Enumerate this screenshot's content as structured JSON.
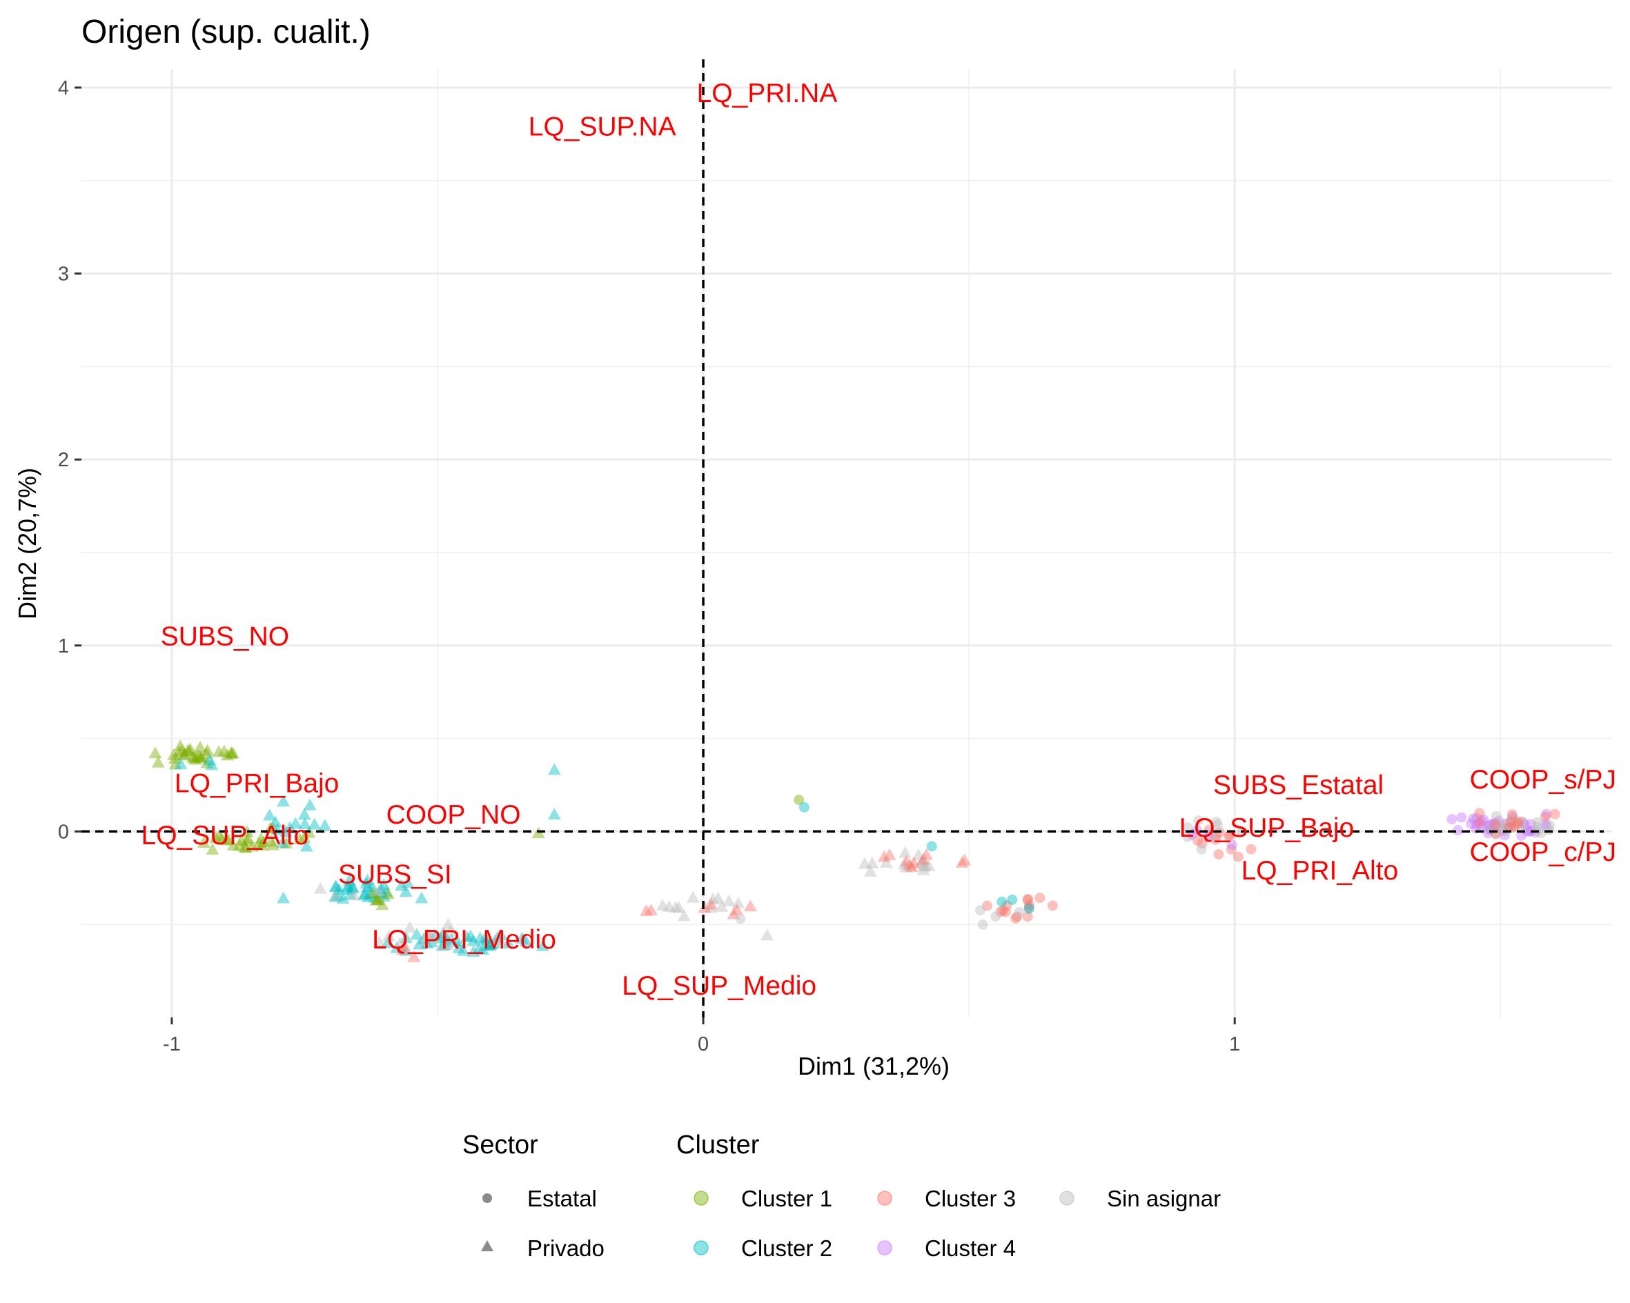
{
  "chart_data": {
    "type": "scatter",
    "title": "Origen (sup. cualit.)",
    "xlabel": "Dim1 (31,2%)",
    "ylabel": "Dim2 (20,7%)",
    "xlim": [
      -1.17,
      1.71
    ],
    "ylim": [
      -1.0,
      4.1
    ],
    "x_ticks": [
      {
        "value": -1,
        "label": "-1"
      },
      {
        "value": 0,
        "label": "0"
      },
      {
        "value": 1,
        "label": "1"
      }
    ],
    "y_ticks": [
      {
        "value": 0,
        "label": "0"
      },
      {
        "value": 1,
        "label": "1"
      },
      {
        "value": 2,
        "label": "2"
      },
      {
        "value": 3,
        "label": "3"
      },
      {
        "value": 4,
        "label": "4"
      }
    ],
    "grid": true,
    "reference_lines": {
      "x": 0,
      "y": 0,
      "style": "dashed"
    },
    "legend": {
      "position": "bottom",
      "sector": {
        "title": "Sector",
        "items": [
          {
            "label": "Estatal",
            "shape": "circle"
          },
          {
            "label": "Privado",
            "shape": "triangle"
          }
        ]
      },
      "cluster": {
        "title": "Cluster",
        "items": [
          {
            "label": "Cluster 1",
            "color": "#7CAE00"
          },
          {
            "label": "Cluster 3",
            "color": "#F8766D"
          },
          {
            "label": "Sin asignar",
            "color": "#BDBDBD"
          },
          {
            "label": "Cluster 2",
            "color": "#00BFC4"
          },
          {
            "label": "Cluster 4",
            "color": "#C77CFF"
          }
        ]
      }
    },
    "category_label_color": "#FF0000",
    "category_labels": [
      {
        "text": "LQ_PRI.NA",
        "x": 0.12,
        "y": 3.97
      },
      {
        "text": "LQ_SUP.NA",
        "x": -0.19,
        "y": 3.79
      },
      {
        "text": "SUBS_NO",
        "x": -0.9,
        "y": 1.05
      },
      {
        "text": "LQ_PRI_Bajo",
        "x": -0.84,
        "y": 0.26
      },
      {
        "text": "COOP_NO",
        "x": -0.47,
        "y": 0.09
      },
      {
        "text": "LQ_SUP_Alto",
        "x": -0.9,
        "y": -0.02
      },
      {
        "text": "SUBS_SI",
        "x": -0.58,
        "y": -0.23
      },
      {
        "text": "LQ_PRI_Medio",
        "x": -0.45,
        "y": -0.58
      },
      {
        "text": "LQ_SUP_Medio",
        "x": 0.03,
        "y": -0.83
      },
      {
        "text": "SUBS_Estatal",
        "x": 1.12,
        "y": 0.25
      },
      {
        "text": "LQ_SUP_Bajo",
        "x": 1.06,
        "y": 0.02
      },
      {
        "text": "LQ_PRI_Alto",
        "x": 1.16,
        "y": -0.21
      },
      {
        "text": "COOP_s/PJ",
        "x": 1.58,
        "y": 0.28
      },
      {
        "text": "COOP_c/PJ",
        "x": 1.58,
        "y": -0.11
      }
    ],
    "point_clusters": [
      {
        "cluster": "Cluster 1",
        "shape": "triangle",
        "n": 30,
        "cx": -0.95,
        "cy": 0.41,
        "sx": 0.04,
        "sy": 0.025
      },
      {
        "cluster": "Cluster 2",
        "shape": "triangle",
        "n": 3,
        "cx": -0.95,
        "cy": 0.38,
        "sx": 0.03,
        "sy": 0.02
      },
      {
        "cluster": "Cluster 1",
        "shape": "triangle",
        "n": 28,
        "cx": -0.85,
        "cy": -0.04,
        "sx": 0.05,
        "sy": 0.03
      },
      {
        "cluster": "Cluster 2",
        "shape": "triangle",
        "n": 12,
        "cx": -0.79,
        "cy": 0.02,
        "sx": 0.04,
        "sy": 0.06
      },
      {
        "cluster": "Cluster 2",
        "shape": "triangle",
        "n": 30,
        "cx": -0.65,
        "cy": -0.31,
        "sx": 0.05,
        "sy": 0.03
      },
      {
        "cluster": "Cluster 1",
        "shape": "triangle",
        "n": 6,
        "cx": -0.6,
        "cy": -0.35,
        "sx": 0.03,
        "sy": 0.025
      },
      {
        "cluster": "Sin asignar",
        "shape": "triangle",
        "n": 4,
        "cx": -0.66,
        "cy": -0.33,
        "sx": 0.03,
        "sy": 0.02
      },
      {
        "cluster": "Cluster 2",
        "shape": "triangle",
        "n": 40,
        "cx": -0.47,
        "cy": -0.6,
        "sx": 0.06,
        "sy": 0.025
      },
      {
        "cluster": "Sin asignar",
        "shape": "triangle",
        "n": 14,
        "cx": -0.47,
        "cy": -0.58,
        "sx": 0.06,
        "sy": 0.03
      },
      {
        "cluster": "Cluster 3",
        "shape": "triangle",
        "n": 3,
        "cx": -0.56,
        "cy": -0.63,
        "sx": 0.02,
        "sy": 0.02
      },
      {
        "cluster": "Sin asignar",
        "shape": "triangle",
        "n": 12,
        "cx": 0.0,
        "cy": -0.4,
        "sx": 0.05,
        "sy": 0.04
      },
      {
        "cluster": "Cluster 3",
        "shape": "triangle",
        "n": 7,
        "cx": -0.02,
        "cy": -0.41,
        "sx": 0.05,
        "sy": 0.03
      },
      {
        "cluster": "Sin asignar",
        "shape": "triangle",
        "n": 14,
        "cx": 0.38,
        "cy": -0.18,
        "sx": 0.04,
        "sy": 0.03
      },
      {
        "cluster": "Cluster 3",
        "shape": "triangle",
        "n": 10,
        "cx": 0.43,
        "cy": -0.16,
        "sx": 0.04,
        "sy": 0.03
      },
      {
        "cluster": "Cluster 3",
        "shape": "circle",
        "n": 14,
        "cx": 0.57,
        "cy": -0.42,
        "sx": 0.05,
        "sy": 0.03
      },
      {
        "cluster": "Sin asignar",
        "shape": "circle",
        "n": 4,
        "cx": 0.55,
        "cy": -0.45,
        "sx": 0.04,
        "sy": 0.03
      },
      {
        "cluster": "Cluster 2",
        "shape": "circle",
        "n": 3,
        "cx": 0.6,
        "cy": -0.38,
        "sx": 0.02,
        "sy": 0.04
      },
      {
        "cluster": "Cluster 3",
        "shape": "circle",
        "n": 12,
        "cx": 0.98,
        "cy": -0.07,
        "sx": 0.04,
        "sy": 0.05
      },
      {
        "cluster": "Sin asignar",
        "shape": "circle",
        "n": 8,
        "cx": 0.97,
        "cy": 0.0,
        "sx": 0.04,
        "sy": 0.04
      },
      {
        "cluster": "Cluster 4",
        "shape": "circle",
        "n": 4,
        "cx": 0.96,
        "cy": -0.02,
        "sx": 0.03,
        "sy": 0.03
      },
      {
        "cluster": "Cluster 4",
        "shape": "circle",
        "n": 38,
        "cx": 1.5,
        "cy": 0.03,
        "sx": 0.05,
        "sy": 0.025
      },
      {
        "cluster": "Sin asignar",
        "shape": "circle",
        "n": 20,
        "cx": 1.51,
        "cy": 0.04,
        "sx": 0.05,
        "sy": 0.025
      },
      {
        "cluster": "Cluster 3",
        "shape": "circle",
        "n": 12,
        "cx": 1.52,
        "cy": 0.05,
        "sx": 0.05,
        "sy": 0.03
      }
    ],
    "points": [
      {
        "cluster": "Cluster 2",
        "shape": "triangle",
        "x": -0.28,
        "y": 0.33
      },
      {
        "cluster": "Cluster 2",
        "shape": "triangle",
        "x": -0.28,
        "y": 0.09
      },
      {
        "cluster": "Cluster 1",
        "shape": "triangle",
        "x": -0.31,
        "y": -0.01
      },
      {
        "cluster": "Cluster 2",
        "shape": "triangle",
        "x": -0.79,
        "y": 0.16
      },
      {
        "cluster": "Cluster 2",
        "shape": "triangle",
        "x": -0.74,
        "y": 0.14
      },
      {
        "cluster": "Cluster 2",
        "shape": "triangle",
        "x": -0.79,
        "y": -0.36
      },
      {
        "cluster": "Cluster 2",
        "shape": "triangle",
        "x": -0.53,
        "y": -0.36
      },
      {
        "cluster": "Cluster 1",
        "shape": "circle",
        "x": 0.18,
        "y": 0.17
      },
      {
        "cluster": "Cluster 2",
        "shape": "circle",
        "x": 0.19,
        "y": 0.13
      },
      {
        "cluster": "Sin asignar",
        "shape": "triangle",
        "x": 0.12,
        "y": -0.56
      },
      {
        "cluster": "Sin asignar",
        "shape": "circle",
        "x": 0.07,
        "y": -0.47
      },
      {
        "cluster": "Cluster 2",
        "shape": "circle",
        "x": 0.43,
        "y": -0.08
      }
    ]
  }
}
